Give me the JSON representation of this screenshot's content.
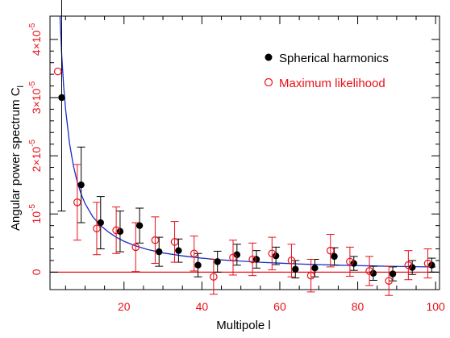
{
  "chart_data": {
    "type": "scatter",
    "xlabel": "Multipole l",
    "ylabel": "Angular power spectrum C",
    "ylabel_sub": "l",
    "xlim": [
      1,
      101
    ],
    "ylim": [
      -0.3,
      4.4
    ],
    "y_exponent": "-5",
    "x_ticks": [
      20,
      40,
      60,
      80,
      100
    ],
    "x_tick_labels": [
      "20",
      "40",
      "60",
      "80",
      "100"
    ],
    "y_ticks": [
      0,
      1,
      2,
      3,
      4
    ],
    "y_tick_labels": [
      {
        "mant": "0",
        "exp": ""
      },
      {
        "mant": "10",
        "exp": "-5"
      },
      {
        "mant": "2×10",
        "exp": "-5"
      },
      {
        "mant": "3×10",
        "exp": "-5"
      },
      {
        "mant": "4×10",
        "exp": "-5"
      }
    ],
    "legend": {
      "position": "top-right"
    },
    "series": [
      {
        "name": "Spherical harmonics",
        "marker": "filled-circle",
        "color": "#000000",
        "points": [
          {
            "x": 4,
            "y": 3.0,
            "err": 1.95
          },
          {
            "x": 9,
            "y": 1.5,
            "err": 0.65
          },
          {
            "x": 14,
            "y": 0.85,
            "err": 0.45
          },
          {
            "x": 19,
            "y": 0.7,
            "err": 0.35
          },
          {
            "x": 24,
            "y": 0.8,
            "err": 0.3
          },
          {
            "x": 29,
            "y": 0.35,
            "err": 0.25
          },
          {
            "x": 34,
            "y": 0.37,
            "err": 0.2
          },
          {
            "x": 39,
            "y": 0.12,
            "err": 0.2
          },
          {
            "x": 44,
            "y": 0.18,
            "err": 0.18
          },
          {
            "x": 49,
            "y": 0.3,
            "err": 0.18
          },
          {
            "x": 54,
            "y": 0.22,
            "err": 0.15
          },
          {
            "x": 59,
            "y": 0.28,
            "err": 0.15
          },
          {
            "x": 64,
            "y": 0.05,
            "err": 0.15
          },
          {
            "x": 69,
            "y": 0.07,
            "err": 0.15
          },
          {
            "x": 74,
            "y": 0.27,
            "err": 0.15
          },
          {
            "x": 79,
            "y": 0.15,
            "err": 0.12
          },
          {
            "x": 84,
            "y": -0.02,
            "err": 0.12
          },
          {
            "x": 89,
            "y": -0.03,
            "err": 0.12
          },
          {
            "x": 94,
            "y": 0.08,
            "err": 0.12
          },
          {
            "x": 99,
            "y": 0.12,
            "err": 0.12
          }
        ]
      },
      {
        "name": "Maximum likelihood",
        "marker": "open-circle",
        "color": "#e8101a",
        "points": [
          {
            "x": 3,
            "y": 3.45,
            "err": 0
          },
          {
            "x": 8,
            "y": 1.2,
            "err": 0.65
          },
          {
            "x": 13,
            "y": 0.75,
            "err": 0.45
          },
          {
            "x": 18,
            "y": 0.72,
            "err": 0.4
          },
          {
            "x": 23,
            "y": 0.43,
            "err": 0.42
          },
          {
            "x": 28,
            "y": 0.55,
            "err": 0.4
          },
          {
            "x": 33,
            "y": 0.52,
            "err": 0.35
          },
          {
            "x": 38,
            "y": 0.32,
            "err": 0.3
          },
          {
            "x": 43,
            "y": -0.08,
            "err": 0.3
          },
          {
            "x": 48,
            "y": 0.25,
            "err": 0.3
          },
          {
            "x": 53,
            "y": 0.22,
            "err": 0.28
          },
          {
            "x": 58,
            "y": 0.32,
            "err": 0.28
          },
          {
            "x": 63,
            "y": 0.2,
            "err": 0.28
          },
          {
            "x": 68,
            "y": -0.06,
            "err": 0.28
          },
          {
            "x": 73,
            "y": 0.37,
            "err": 0.28
          },
          {
            "x": 78,
            "y": 0.18,
            "err": 0.25
          },
          {
            "x": 83,
            "y": 0.02,
            "err": 0.25
          },
          {
            "x": 88,
            "y": -0.15,
            "err": 0.25
          },
          {
            "x": 93,
            "y": 0.12,
            "err": 0.25
          },
          {
            "x": 98,
            "y": 0.15,
            "err": 0.25
          }
        ]
      }
    ],
    "model_curve": {
      "color": "#1a2dc8",
      "x": [
        3.5,
        4,
        4.5,
        5,
        6,
        7,
        8,
        9,
        10,
        12,
        14,
        16,
        18,
        20,
        23,
        26,
        30,
        35,
        40,
        45,
        50,
        55,
        60,
        65,
        70,
        75,
        80,
        85,
        90,
        95,
        100
      ],
      "y": [
        4.5,
        3.75,
        3.2,
        2.8,
        2.22,
        1.83,
        1.55,
        1.34,
        1.18,
        0.95,
        0.8,
        0.69,
        0.6,
        0.53,
        0.45,
        0.39,
        0.33,
        0.28,
        0.24,
        0.21,
        0.19,
        0.17,
        0.155,
        0.14,
        0.13,
        0.12,
        0.112,
        0.105,
        0.099,
        0.093,
        0.088
      ]
    },
    "zero_line": {
      "y": 0,
      "color": "#e8101a"
    }
  }
}
